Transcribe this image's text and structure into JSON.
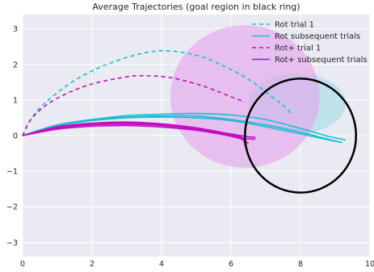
{
  "chart_data": {
    "type": "line",
    "title": "Average Trajectories (goal region in black ring)",
    "xlabel": "",
    "ylabel": "",
    "xlim": [
      0,
      10
    ],
    "ylim": [
      -3.4,
      3.4
    ],
    "x_ticks": [
      0,
      2,
      4,
      6,
      8,
      10
    ],
    "y_ticks": [
      -3,
      -2,
      -1,
      0,
      1,
      2,
      3
    ],
    "grid": true,
    "legend_position": "top-right",
    "colors": {
      "background": "#eaeaf2",
      "grid": "#ffffff",
      "rot": "#17bfcf",
      "rot_plus": "#c20ec2",
      "rot_region": "#a6dde6",
      "rot_plus_region": "#e4a8ec",
      "goal_ring": "#000000"
    },
    "regions": [
      {
        "name": "rot-region",
        "center": [
          7.9,
          0.9
        ],
        "radii": [
          1.4,
          0.85
        ]
      },
      {
        "name": "rot-plus-region",
        "center": [
          6.4,
          1.1
        ],
        "radii": [
          2.15,
          2.0
        ]
      }
    ],
    "goal_ring": {
      "center": [
        8.0,
        0.0
      ],
      "radius": 1.6
    },
    "series": [
      {
        "name": "Rot trial 1",
        "style": "dashed",
        "color": "#17bfcf",
        "points": [
          [
            0,
            0
          ],
          [
            0.3,
            0.55
          ],
          [
            0.8,
            1.05
          ],
          [
            1.5,
            1.55
          ],
          [
            2.3,
            1.95
          ],
          [
            3.2,
            2.25
          ],
          [
            3.9,
            2.38
          ],
          [
            4.5,
            2.35
          ],
          [
            5.2,
            2.2
          ],
          [
            5.8,
            1.95
          ],
          [
            6.3,
            1.7
          ],
          [
            6.7,
            1.45
          ],
          [
            7.1,
            1.15
          ],
          [
            7.5,
            0.85
          ],
          [
            7.75,
            0.6
          ]
        ]
      },
      {
        "name": "Rot subsequent trials",
        "style": "solid",
        "color": "#17bfcf",
        "curves": [
          [
            [
              0,
              0
            ],
            [
              1,
              0.3
            ],
            [
              2,
              0.45
            ],
            [
              3,
              0.52
            ],
            [
              4,
              0.55
            ],
            [
              5,
              0.55
            ],
            [
              6,
              0.45
            ],
            [
              7,
              0.3
            ],
            [
              8,
              0.1
            ],
            [
              8.7,
              -0.08
            ],
            [
              9.2,
              -0.2
            ]
          ],
          [
            [
              0,
              0
            ],
            [
              1,
              0.3
            ],
            [
              2,
              0.45
            ],
            [
              3,
              0.56
            ],
            [
              4,
              0.6
            ],
            [
              5,
              0.62
            ],
            [
              6,
              0.58
            ],
            [
              7,
              0.45
            ],
            [
              8,
              0.2
            ],
            [
              8.8,
              -0.02
            ],
            [
              9.3,
              -0.12
            ]
          ],
          [
            [
              0,
              0
            ],
            [
              1,
              0.28
            ],
            [
              2,
              0.42
            ],
            [
              3,
              0.5
            ],
            [
              4,
              0.52
            ],
            [
              5,
              0.5
            ],
            [
              6,
              0.42
            ],
            [
              7,
              0.25
            ],
            [
              8,
              0.05
            ],
            [
              8.7,
              -0.1
            ],
            [
              9.1,
              -0.18
            ]
          ]
        ]
      },
      {
        "name": "Rot+ trial 1",
        "style": "dashed",
        "color": "#c20ec2",
        "points": [
          [
            0,
            0
          ],
          [
            0.2,
            0.4
          ],
          [
            0.6,
            0.8
          ],
          [
            1.2,
            1.15
          ],
          [
            2,
            1.45
          ],
          [
            3,
            1.65
          ],
          [
            3.6,
            1.68
          ],
          [
            4.3,
            1.62
          ],
          [
            5,
            1.45
          ],
          [
            5.6,
            1.25
          ],
          [
            6.1,
            1.05
          ],
          [
            6.4,
            0.95
          ]
        ]
      },
      {
        "name": "Rot+ subsequent trials",
        "style": "solid",
        "color": "#c20ec2",
        "curves": [
          [
            [
              0,
              0
            ],
            [
              1,
              0.2
            ],
            [
              2,
              0.3
            ],
            [
              3,
              0.32
            ],
            [
              4,
              0.28
            ],
            [
              5,
              0.18
            ],
            [
              5.8,
              0.05
            ],
            [
              6.4,
              -0.08
            ],
            [
              6.7,
              -0.1
            ]
          ],
          [
            [
              0,
              0
            ],
            [
              1,
              0.25
            ],
            [
              2,
              0.35
            ],
            [
              3,
              0.38
            ],
            [
              4,
              0.33
            ],
            [
              5,
              0.22
            ],
            [
              5.8,
              0.08
            ],
            [
              6.4,
              -0.02
            ],
            [
              6.7,
              -0.05
            ]
          ],
          [
            [
              0,
              0
            ],
            [
              1,
              0.18
            ],
            [
              2,
              0.26
            ],
            [
              3,
              0.28
            ],
            [
              4,
              0.24
            ],
            [
              5,
              0.15
            ],
            [
              5.8,
              0.02
            ],
            [
              6.3,
              -0.1
            ],
            [
              6.5,
              -0.22
            ]
          ],
          [
            [
              0,
              0
            ],
            [
              1,
              0.22
            ],
            [
              2,
              0.32
            ],
            [
              3,
              0.35
            ],
            [
              4,
              0.3
            ],
            [
              5,
              0.2
            ],
            [
              5.8,
              0.06
            ],
            [
              6.3,
              -0.04
            ],
            [
              6.4,
              -0.28
            ]
          ]
        ]
      }
    ]
  }
}
